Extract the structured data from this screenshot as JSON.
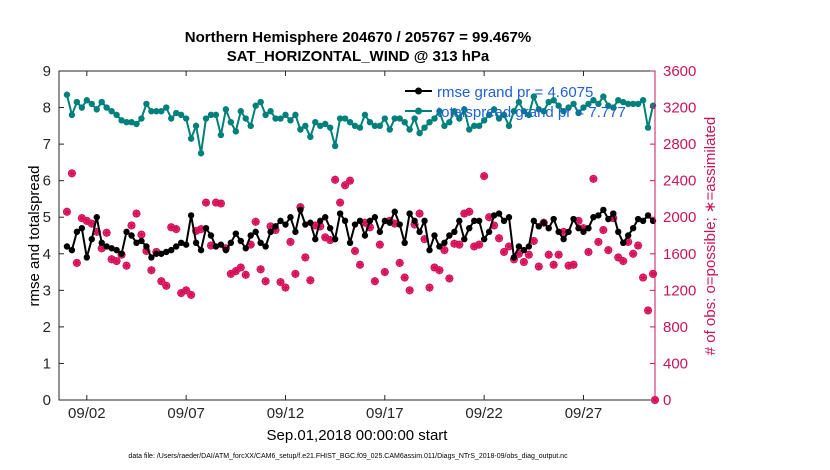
{
  "chart_data": {
    "type": "line",
    "title_line1": "Northern Hemisphere 204670 / 205767 = 99.467%",
    "title_line2": "SAT_HORIZONTAL_WIND @ 313 hPa",
    "xlabel": "Sep.01,2018 00:00:00 start",
    "ylabel_left": "rmse and totalspread",
    "ylabel_right": "# of obs: o=possible; ∗=assimilated",
    "footer": "data file: /Users/raeder/DAI/ATM_forcXX/CAM6_setup/f.e21.FHIST_BGC.f09_025.CAM6assim.011/Diags_NTrS_2018-09/obs_diag_output.nc",
    "xlim": [
      0.6,
      30.6
    ],
    "ylim_left": [
      0,
      9
    ],
    "ylim_right": [
      0,
      3600
    ],
    "xticks": [
      2,
      7,
      12,
      17,
      22,
      27
    ],
    "xtick_labels": [
      "09/02",
      "09/07",
      "09/12",
      "09/17",
      "09/22",
      "09/27"
    ],
    "yticks_left": [
      0,
      1,
      2,
      3,
      4,
      5,
      6,
      7,
      8,
      9
    ],
    "yticks_right": [
      0,
      400,
      800,
      1200,
      1600,
      2000,
      2400,
      2800,
      3200,
      3600
    ],
    "legend": [
      {
        "label": "rmse grand pr = 4.6075"
      },
      {
        "label": "totalspread grand pr = 7.777"
      }
    ],
    "colors": {
      "rmse": "#000000",
      "spread": "#00807a",
      "obs": "#d6105a",
      "right_axis": "#c8145a",
      "legend_text": "#1f5fd6"
    },
    "series": [
      {
        "name": "rmse",
        "x": [
          1.0,
          1.25,
          1.5,
          1.75,
          2.0,
          2.25,
          2.5,
          2.75,
          3.0,
          3.25,
          3.5,
          3.75,
          4.0,
          4.25,
          4.5,
          4.75,
          5.0,
          5.25,
          5.5,
          5.75,
          6.0,
          6.25,
          6.5,
          6.75,
          7.0,
          7.25,
          7.5,
          7.75,
          8.0,
          8.25,
          8.5,
          8.75,
          9.0,
          9.25,
          9.5,
          9.75,
          10.0,
          10.25,
          10.5,
          10.75,
          11.0,
          11.25,
          11.5,
          11.75,
          12.0,
          12.25,
          12.5,
          12.75,
          13.0,
          13.25,
          13.5,
          13.75,
          14.0,
          14.25,
          14.5,
          14.75,
          15.0,
          15.25,
          15.5,
          15.75,
          16.0,
          16.25,
          16.5,
          16.75,
          17.0,
          17.25,
          17.5,
          17.75,
          18.0,
          18.25,
          18.5,
          18.75,
          19.0,
          19.25,
          19.5,
          19.75,
          20.0,
          20.25,
          20.5,
          20.75,
          21.0,
          21.25,
          21.5,
          21.75,
          22.0,
          22.25,
          22.5,
          22.75,
          23.0,
          23.25,
          23.5,
          23.75,
          24.0,
          24.25,
          24.5,
          24.75,
          25.0,
          25.25,
          25.5,
          25.75,
          26.0,
          26.25,
          26.5,
          26.75,
          27.0,
          27.25,
          27.5,
          27.75,
          28.0,
          28.25,
          28.5,
          28.75,
          29.0,
          29.25,
          29.5,
          29.75,
          30.0,
          30.25,
          30.5
        ],
        "values": [
          4.2,
          4.1,
          4.6,
          4.7,
          3.9,
          4.4,
          5.0,
          4.3,
          4.2,
          4.15,
          4.1,
          4.0,
          4.6,
          4.5,
          4.3,
          4.35,
          4.2,
          3.9,
          4.0,
          4.0,
          4.05,
          4.1,
          4.2,
          4.3,
          4.25,
          5.05,
          4.3,
          4.1,
          4.7,
          4.5,
          4.2,
          4.25,
          4.1,
          4.3,
          4.55,
          4.35,
          4.15,
          4.5,
          4.6,
          4.3,
          4.2,
          4.6,
          4.75,
          4.9,
          4.8,
          5.0,
          4.6,
          5.2,
          4.8,
          4.85,
          4.4,
          4.9,
          5.0,
          4.7,
          4.4,
          5.1,
          4.9,
          4.3,
          4.8,
          4.9,
          4.5,
          4.9,
          5.0,
          4.6,
          4.9,
          4.85,
          5.15,
          4.8,
          4.3,
          5.1,
          4.9,
          4.6,
          4.9,
          4.1,
          4.5,
          4.2,
          4.3,
          4.5,
          4.6,
          4.9,
          4.4,
          4.7,
          4.9,
          4.9,
          4.4,
          4.6,
          5.05,
          5.1,
          4.9,
          5.0,
          3.9,
          4.2,
          4.1,
          4.2,
          4.9,
          4.75,
          4.85,
          4.7,
          4.95,
          4.6,
          4.4,
          4.6,
          4.95,
          4.7,
          4.6,
          4.7,
          5.0,
          5.05,
          5.2,
          4.95,
          5.1,
          4.6,
          4.3,
          4.5,
          4.7,
          4.95,
          4.9,
          5.05,
          4.9
        ]
      },
      {
        "name": "totalspread",
        "x": [
          1.0,
          1.25,
          1.5,
          1.75,
          2.0,
          2.25,
          2.5,
          2.75,
          3.0,
          3.25,
          3.5,
          3.75,
          4.0,
          4.25,
          4.5,
          4.75,
          5.0,
          5.25,
          5.5,
          5.75,
          6.0,
          6.25,
          6.5,
          6.75,
          7.0,
          7.25,
          7.5,
          7.75,
          8.0,
          8.25,
          8.5,
          8.75,
          9.0,
          9.25,
          9.5,
          9.75,
          10.0,
          10.25,
          10.5,
          10.75,
          11.0,
          11.25,
          11.5,
          11.75,
          12.0,
          12.25,
          12.5,
          12.75,
          13.0,
          13.25,
          13.5,
          13.75,
          14.0,
          14.25,
          14.5,
          14.75,
          15.0,
          15.25,
          15.5,
          15.75,
          16.0,
          16.25,
          16.5,
          16.75,
          17.0,
          17.25,
          17.5,
          17.75,
          18.0,
          18.25,
          18.5,
          18.75,
          19.0,
          19.25,
          19.5,
          19.75,
          20.0,
          20.25,
          20.5,
          20.75,
          21.0,
          21.25,
          21.5,
          21.75,
          22.0,
          22.25,
          22.5,
          22.75,
          23.0,
          23.25,
          23.5,
          23.75,
          24.0,
          24.25,
          24.5,
          24.75,
          25.0,
          25.25,
          25.5,
          25.75,
          26.0,
          26.25,
          26.5,
          26.75,
          27.0,
          27.25,
          27.5,
          27.75,
          28.0,
          28.25,
          28.5,
          28.75,
          29.0,
          29.25,
          29.5,
          29.75,
          30.0,
          30.25,
          30.5
        ],
        "values": [
          8.35,
          7.8,
          8.15,
          8.0,
          8.2,
          8.1,
          7.95,
          8.15,
          8.0,
          7.9,
          7.8,
          7.65,
          7.6,
          7.6,
          7.55,
          7.7,
          8.1,
          7.9,
          7.9,
          7.9,
          8.0,
          7.7,
          7.85,
          7.8,
          7.7,
          7.15,
          7.5,
          6.75,
          7.7,
          7.8,
          7.8,
          7.25,
          7.95,
          7.6,
          7.35,
          7.9,
          7.7,
          7.5,
          8.05,
          8.15,
          7.8,
          7.9,
          7.7,
          7.7,
          7.8,
          7.65,
          7.8,
          7.4,
          7.5,
          7.2,
          7.6,
          7.5,
          7.55,
          7.45,
          6.95,
          7.7,
          7.7,
          7.6,
          7.5,
          7.45,
          7.8,
          7.6,
          7.5,
          7.5,
          7.7,
          7.4,
          7.7,
          7.7,
          7.6,
          7.4,
          7.7,
          7.3,
          7.45,
          7.6,
          7.7,
          7.9,
          7.5,
          7.6,
          7.9,
          7.7,
          7.95,
          7.4,
          7.5,
          7.5,
          7.65,
          7.8,
          7.95,
          7.7,
          7.8,
          7.5,
          7.9,
          8.15,
          7.9,
          7.8,
          8.3,
          7.95,
          7.9,
          8.15,
          8.2,
          8.05,
          7.9,
          8.0,
          8.1,
          7.85,
          8.0,
          8.1,
          8.2,
          8.1,
          8.3,
          8.05,
          8.0,
          8.2,
          8.15,
          8.1,
          8.1,
          8.1,
          8.2,
          7.45,
          8.05
        ]
      },
      {
        "name": "obs_possible",
        "x": [
          1.0,
          1.25,
          1.5,
          1.75,
          2.0,
          2.25,
          2.5,
          2.75,
          3.0,
          3.25,
          3.5,
          3.75,
          4.0,
          4.25,
          4.5,
          4.75,
          5.0,
          5.25,
          5.5,
          5.75,
          6.0,
          6.25,
          6.5,
          6.75,
          7.0,
          7.25,
          7.5,
          7.75,
          8.0,
          8.25,
          8.5,
          8.75,
          9.0,
          9.25,
          9.5,
          9.75,
          10.0,
          10.25,
          10.5,
          10.75,
          11.0,
          11.25,
          11.5,
          11.75,
          12.0,
          12.25,
          12.5,
          12.75,
          13.0,
          13.25,
          13.5,
          13.75,
          14.0,
          14.25,
          14.5,
          14.75,
          15.0,
          15.25,
          15.5,
          15.75,
          16.0,
          16.25,
          16.5,
          16.75,
          17.0,
          17.25,
          17.5,
          17.75,
          18.0,
          18.25,
          18.5,
          18.75,
          19.0,
          19.25,
          19.5,
          19.75,
          20.0,
          20.25,
          20.5,
          20.75,
          21.0,
          21.25,
          21.5,
          21.75,
          22.0,
          22.25,
          22.5,
          22.75,
          23.0,
          23.25,
          23.5,
          23.75,
          24.0,
          24.25,
          24.5,
          24.75,
          25.0,
          25.25,
          25.5,
          25.75,
          26.0,
          26.25,
          26.5,
          26.75,
          27.0,
          27.25,
          27.5,
          27.75,
          28.0,
          28.25,
          28.5,
          28.75,
          29.0,
          29.25,
          29.5,
          29.75,
          30.0,
          30.25,
          30.5
        ],
        "values": [
          2060,
          2480,
          1500,
          1990,
          1960,
          1930,
          1840,
          1660,
          1830,
          1540,
          1520,
          1590,
          1470,
          1910,
          2040,
          1810,
          1630,
          1420,
          1620,
          1300,
          1250,
          1890,
          1870,
          1170,
          1200,
          1150,
          1850,
          1870,
          2160,
          1690,
          2160,
          2150,
          1660,
          1380,
          1410,
          1450,
          1370,
          1700,
          1950,
          1430,
          1300,
          1900,
          1860,
          1290,
          1230,
          1730,
          1380,
          2110,
          1560,
          1310,
          1910,
          1900,
          1780,
          1750,
          2410,
          2160,
          2350,
          2400,
          1630,
          1480,
          1940,
          1890,
          1300,
          1700,
          1400,
          1960,
          1930,
          1500,
          1340,
          1200,
          1920,
          2040,
          1760,
          1230,
          1450,
          1420,
          1640,
          1330,
          1710,
          1700,
          2040,
          2060,
          1680,
          1700,
          2450,
          2000,
          1910,
          1770,
          1620,
          1680,
          1540,
          1600,
          1510,
          1590,
          1740,
          1460,
          1940,
          1590,
          1480,
          1590,
          1840,
          1470,
          1480,
          1960,
          1880,
          1620,
          2420,
          1730,
          1860,
          1640,
          1990,
          1560,
          1520,
          1730,
          1600,
          1690,
          1340,
          980,
          1380
        ]
      },
      {
        "name": "obs_assimilated",
        "x": [
          1.0,
          1.25,
          1.5,
          1.75,
          2.0,
          2.25,
          2.5,
          2.75,
          3.0,
          3.25,
          3.5,
          3.75,
          4.0,
          4.25,
          4.5,
          4.75,
          5.0,
          5.25,
          5.5,
          5.75,
          6.0,
          6.25,
          6.5,
          6.75,
          7.0,
          7.25,
          7.5,
          7.75,
          8.0,
          8.25,
          8.5,
          8.75,
          9.0,
          9.25,
          9.5,
          9.75,
          10.0,
          10.25,
          10.5,
          10.75,
          11.0,
          11.25,
          11.5,
          11.75,
          12.0,
          12.25,
          12.5,
          12.75,
          13.0,
          13.25,
          13.5,
          13.75,
          14.0,
          14.25,
          14.5,
          14.75,
          15.0,
          15.25,
          15.5,
          15.75,
          16.0,
          16.25,
          16.5,
          16.75,
          17.0,
          17.25,
          17.5,
          17.75,
          18.0,
          18.25,
          18.5,
          18.75,
          19.0,
          19.25,
          19.5,
          19.75,
          20.0,
          20.25,
          20.5,
          20.75,
          21.0,
          21.25,
          21.5,
          21.75,
          22.0,
          22.25,
          22.5,
          22.75,
          23.0,
          23.25,
          23.5,
          23.75,
          24.0,
          24.25,
          24.5,
          24.75,
          25.0,
          25.25,
          25.5,
          25.75,
          26.0,
          26.25,
          26.5,
          26.75,
          27.0,
          27.25,
          27.5,
          27.75,
          28.0,
          28.25,
          28.5,
          28.75,
          29.0,
          29.25,
          29.5,
          29.75,
          30.0,
          30.25,
          30.5
        ],
        "values": [
          2060,
          2480,
          1500,
          1990,
          1960,
          1930,
          1840,
          1660,
          1830,
          1540,
          1520,
          1590,
          1470,
          1910,
          2040,
          1810,
          1630,
          1420,
          1620,
          1300,
          1250,
          1890,
          1870,
          1170,
          1200,
          1150,
          1850,
          1870,
          2160,
          1690,
          2160,
          2150,
          1660,
          1380,
          1410,
          1450,
          1370,
          1700,
          1950,
          1430,
          1300,
          1900,
          1860,
          1290,
          1230,
          1730,
          1380,
          2110,
          1560,
          1310,
          1910,
          1900,
          1780,
          1750,
          2410,
          2160,
          2350,
          2400,
          1630,
          1480,
          1940,
          1890,
          1300,
          1700,
          1400,
          1960,
          1930,
          1500,
          1340,
          1200,
          1920,
          2040,
          1760,
          1230,
          1450,
          1420,
          1640,
          1330,
          1710,
          1700,
          2040,
          2060,
          1680,
          1700,
          2450,
          2000,
          1910,
          1770,
          1620,
          1680,
          1540,
          1600,
          1510,
          1590,
          1740,
          1460,
          1940,
          1590,
          1480,
          1590,
          1840,
          1470,
          1480,
          1960,
          1880,
          1620,
          2420,
          1730,
          1860,
          1640,
          1990,
          1560,
          1520,
          1730,
          1600,
          1690,
          1340,
          980,
          1380
        ]
      },
      {
        "name": "obs_edge",
        "x": [
          30.6
        ],
        "values": [
          0
        ]
      }
    ]
  }
}
